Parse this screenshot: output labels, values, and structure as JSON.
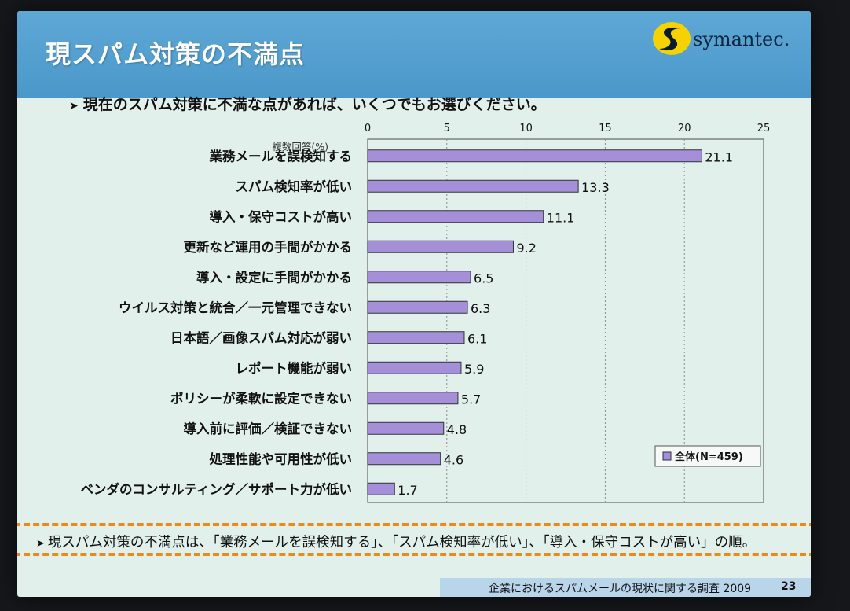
{
  "slide": {
    "title": "現スパム対策の不満点",
    "brand": "symantec.",
    "subtitle": "現在のスパム対策に不満な点があれば、いくつでもお選びください。",
    "summary": "現スパム対策の不満点は、「業務メールを誤検知する」、「スパム検知率が低い」、「導入・保守コストが高い」の順。",
    "footer": "企業におけるスパムメールの現状に関する調査 2009",
    "page_number": "23"
  },
  "colors": {
    "bar": "#a48fd8",
    "header": "#4b98c9",
    "slide_bg": "#e2f0ec",
    "summary_border": "#e98a19"
  },
  "chart_data": {
    "type": "bar",
    "orientation": "horizontal",
    "unit_label": "複数回答(%)",
    "categories": [
      "業務メールを誤検知する",
      "スパム検知率が低い",
      "導入・保守コストが高い",
      "更新など運用の手間がかかる",
      "導入・設定に手間がかかる",
      "ウイルス対策と統合／一元管理できない",
      "日本語／画像スパム対応が弱い",
      "レポート機能が弱い",
      "ポリシーが柔軟に設定できない",
      "導入前に評価／検証できない",
      "処理性能や可用性が低い",
      "ベンダのコンサルティング／サポート力が低い"
    ],
    "series": [
      {
        "name": "全体(N=459)",
        "values": [
          21.1,
          13.3,
          11.1,
          9.2,
          6.5,
          6.3,
          6.1,
          5.9,
          5.7,
          4.8,
          4.6,
          1.7
        ]
      }
    ],
    "xlim": [
      0,
      25
    ],
    "xticks": [
      0,
      5,
      10,
      15,
      20,
      25
    ],
    "grid": true,
    "legend_position": "bottom-right"
  }
}
